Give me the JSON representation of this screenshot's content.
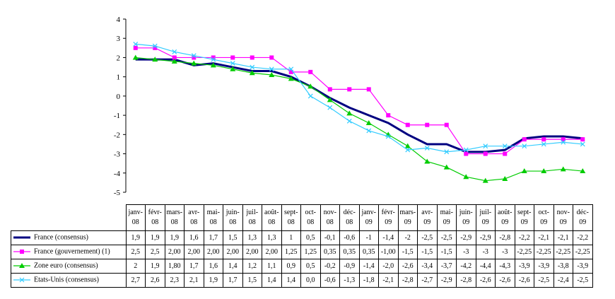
{
  "chart_data": {
    "type": "line",
    "categories": [
      [
        "janv-",
        "08"
      ],
      [
        "févr-",
        "08"
      ],
      [
        "mars-",
        "08"
      ],
      [
        "avr-",
        "08"
      ],
      [
        "mai-",
        "08"
      ],
      [
        "juin-",
        "08"
      ],
      [
        "juil-",
        "08"
      ],
      [
        "août-",
        "08"
      ],
      [
        "sept-",
        "08"
      ],
      [
        "oct-",
        "08"
      ],
      [
        "nov-",
        "08"
      ],
      [
        "déc-",
        "08"
      ],
      [
        "janv-",
        "09"
      ],
      [
        "févr-",
        "09"
      ],
      [
        "mars-",
        "09"
      ],
      [
        "avr-",
        "09"
      ],
      [
        "mai-",
        "09"
      ],
      [
        "juin-",
        "09"
      ],
      [
        "juil-",
        "09"
      ],
      [
        "août-",
        "09"
      ],
      [
        "sept-",
        "09"
      ],
      [
        "oct-",
        "09"
      ],
      [
        "nov-",
        "09"
      ],
      [
        "déc-",
        "09"
      ]
    ],
    "ylim": [
      -5,
      4
    ],
    "yticks": [
      "4",
      "3",
      "2",
      "1",
      "0",
      "-1",
      "-2",
      "-3",
      "-4",
      "-5"
    ],
    "grid": false,
    "series": [
      {
        "name": "France (consensus)",
        "color": "#000080",
        "marker": "none",
        "values": [
          1.9,
          1.9,
          1.9,
          1.6,
          1.7,
          1.5,
          1.3,
          1.3,
          1,
          0.5,
          -0.1,
          -0.6,
          -1,
          -1.4,
          -2,
          -2.5,
          -2.5,
          -2.9,
          -2.9,
          -2.8,
          -2.2,
          -2.1,
          -2.1,
          -2.2
        ],
        "labels": [
          "1,9",
          "1,9",
          "1,9",
          "1,6",
          "1,7",
          "1,5",
          "1,3",
          "1,3",
          "1",
          "0,5",
          "-0,1",
          "-0,6",
          "-1",
          "-1,4",
          "-2",
          "-2,5",
          "-2,5",
          "-2,9",
          "-2,9",
          "-2,8",
          "-2,2",
          "-2,1",
          "-2,1",
          "-2,2"
        ]
      },
      {
        "name": "France (gouvernement) (1)",
        "color": "#ff00ff",
        "marker": "square",
        "values": [
          2.5,
          2.5,
          2.0,
          2.0,
          2.0,
          2.0,
          2.0,
          2.0,
          1.25,
          1.25,
          0.35,
          0.35,
          0.35,
          -1.0,
          -1.5,
          -1.5,
          -1.5,
          -3,
          -3,
          -3,
          -2.25,
          -2.25,
          -2.25,
          -2.25
        ],
        "labels": [
          "2,5",
          "2,5",
          "2,00",
          "2,00",
          "2,00",
          "2,00",
          "2,00",
          "2,00",
          "1,25",
          "1,25",
          "0,35",
          "0,35",
          "0,35",
          "-1,00",
          "-1,5",
          "-1,5",
          "-1,5",
          "-3",
          "-3",
          "-3",
          "-2,25",
          "-2,25",
          "-2,25",
          "-2,25"
        ]
      },
      {
        "name": "Zone euro (consensus)",
        "color": "#00cc00",
        "marker": "triangle",
        "values": [
          2,
          1.9,
          1.8,
          1.7,
          1.6,
          1.4,
          1.2,
          1.1,
          0.9,
          0.5,
          -0.2,
          -0.9,
          -1.4,
          -2.0,
          -2.6,
          -3.4,
          -3.7,
          -4.2,
          -4.4,
          -4.3,
          -3.9,
          -3.9,
          -3.8,
          -3.9
        ],
        "labels": [
          "2",
          "1,9",
          "1,80",
          "1,7",
          "1,6",
          "1,4",
          "1,2",
          "1,1",
          "0,9",
          "0,5",
          "-0,2",
          "-0,9",
          "-1,4",
          "-2,0",
          "-2,6",
          "-3,4",
          "-3,7",
          "-4,2",
          "-4,4",
          "-4,3",
          "-3,9",
          "-3,9",
          "-3,8",
          "-3,9"
        ]
      },
      {
        "name": "Etats-Unis (consensus)",
        "color": "#33ccff",
        "marker": "x",
        "values": [
          2.7,
          2.6,
          2.3,
          2.1,
          1.9,
          1.7,
          1.5,
          1.4,
          1.4,
          0.0,
          -0.6,
          -1.3,
          -1.8,
          -2.1,
          -2.8,
          -2.7,
          -2.9,
          -2.8,
          -2.6,
          -2.6,
          -2.6,
          -2.5,
          -2.4,
          -2.5
        ],
        "labels": [
          "2,7",
          "2,6",
          "2,3",
          "2,1",
          "1,9",
          "1,7",
          "1,5",
          "1,4",
          "1,4",
          "0,0",
          "-0,6",
          "-1,3",
          "-1,8",
          "-2,1",
          "-2,8",
          "-2,7",
          "-2,9",
          "-2,8",
          "-2,6",
          "-2,6",
          "-2,6",
          "-2,5",
          "-2,4",
          "-2,5"
        ]
      }
    ]
  }
}
